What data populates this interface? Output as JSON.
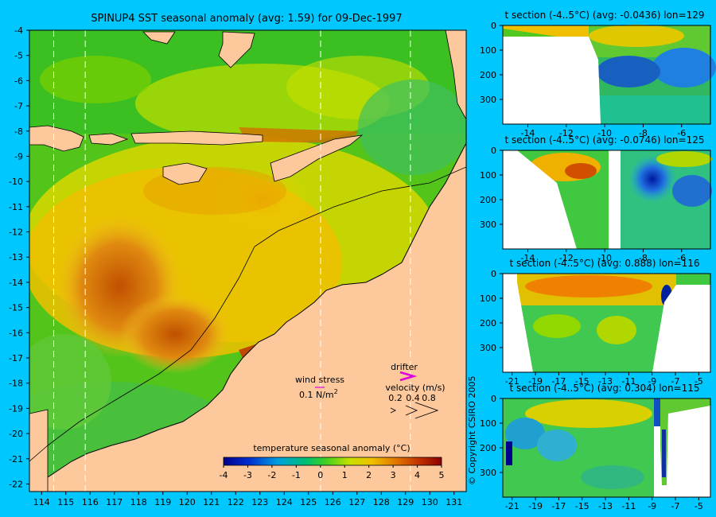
{
  "colors": {
    "background": "#00c8ff",
    "land": "#fcc89c",
    "coast": "#000000",
    "accent": "#e000e0"
  },
  "main_map": {
    "title": "SPINUP4 SST seasonal anomaly (avg: 1.59) for 09-Dec-1997",
    "x_ticks": [
      "114",
      "115",
      "116",
      "117",
      "118",
      "119",
      "120",
      "121",
      "122",
      "123",
      "124",
      "125",
      "126",
      "127",
      "128",
      "129",
      "130",
      "131"
    ],
    "y_ticks": [
      "-4",
      "-5",
      "-6",
      "-7",
      "-8",
      "-9",
      "-10",
      "-11",
      "-12",
      "-13",
      "-14",
      "-15",
      "-16",
      "-17",
      "-18",
      "-19",
      "-20",
      "-21",
      "-22"
    ],
    "x_range": [
      113.5,
      131.5
    ],
    "y_range": [
      -22.3,
      -4
    ],
    "section_lines_lon": [
      114.5,
      115.8,
      125.5,
      129.2
    ],
    "wind_stress": {
      "label": "wind stress",
      "scale_label": "0.1 N/m",
      "scale_sup": "2"
    },
    "drifter": {
      "label": "drifter",
      "velocity_label": "velocity (m/s)",
      "values": [
        "0.2",
        "0.4",
        "0.8"
      ]
    },
    "colorbar": {
      "title": "temperature seasonal anomaly (°C)",
      "ticks": [
        "-4",
        "-3",
        "-2",
        "-1",
        "0",
        "1",
        "2",
        "3",
        "4",
        "5"
      ],
      "range": [
        -4,
        5
      ]
    }
  },
  "copyright": "© Copyright CSIRO 2005",
  "sections": [
    {
      "title": "t section (-4..5°C) (avg: -0.0436) lon=129",
      "x_ticks": [
        "-14",
        "-12",
        "-10",
        "-8",
        "-6"
      ],
      "x_range": [
        -15.3,
        -4.5
      ],
      "y_ticks": [
        "0",
        "100",
        "200",
        "300"
      ],
      "y_max": 400
    },
    {
      "title": "t section (-4..5°C) (avg: -0.0746) lon=125",
      "x_ticks": [
        "-14",
        "-12",
        "-10",
        "-8",
        "-6"
      ],
      "x_range": [
        -15.3,
        -4.5
      ],
      "y_ticks": [
        "0",
        "100",
        "200",
        "300"
      ],
      "y_max": 400
    },
    {
      "title": "t section (-4..5°C) (avg: 0.888) lon=116",
      "x_ticks": [
        "-21",
        "-19",
        "-17",
        "-15",
        "-13",
        "-11",
        "-9",
        "-7",
        "-5"
      ],
      "x_range": [
        -21.8,
        -4
      ],
      "y_ticks": [
        "0",
        "100",
        "200",
        "300"
      ],
      "y_max": 400
    },
    {
      "title": "t section (-4..5°C) (avg: 0.304) lon=115",
      "x_ticks": [
        "-21",
        "-19",
        "-17",
        "-15",
        "-13",
        "-11",
        "-9",
        "-7",
        "-5"
      ],
      "x_range": [
        -21.8,
        -4
      ],
      "y_ticks": [
        "0",
        "100",
        "200",
        "300"
      ],
      "y_max": 400
    }
  ],
  "chart_data": [
    {
      "type": "heatmap",
      "title": "SPINUP4 SST seasonal anomaly (avg: 1.59) for 09-Dec-1997",
      "x_range": [
        113.5,
        131.5
      ],
      "y_range": [
        -22.3,
        -4
      ],
      "value_range": [
        -4,
        5
      ],
      "units": "°C"
    },
    {
      "type": "heatmap",
      "title": "t section (-4..5°C) (avg: -0.0436) lon=129",
      "x_range": [
        -15.3,
        -4.5
      ],
      "y_range": [
        0,
        400
      ],
      "value_range": [
        -4,
        5
      ]
    },
    {
      "type": "heatmap",
      "title": "t section (-4..5°C) (avg: -0.0746) lon=125",
      "x_range": [
        -15.3,
        -4.5
      ],
      "y_range": [
        0,
        400
      ],
      "value_range": [
        -4,
        5
      ]
    },
    {
      "type": "heatmap",
      "title": "t section (-4..5°C) (avg: 0.888) lon=116",
      "x_range": [
        -21.8,
        -4
      ],
      "y_range": [
        0,
        400
      ],
      "value_range": [
        -4,
        5
      ]
    },
    {
      "type": "heatmap",
      "title": "t section (-4..5°C) (avg: 0.304) lon=115",
      "x_range": [
        -21.8,
        -4
      ],
      "y_range": [
        0,
        400
      ],
      "value_range": [
        -4,
        5
      ]
    }
  ]
}
